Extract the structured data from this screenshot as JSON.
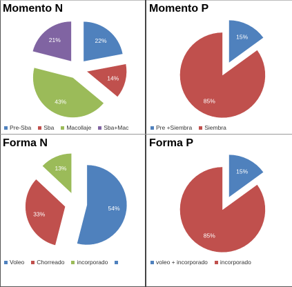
{
  "chart_data": [
    {
      "type": "pie",
      "title": "Momento N",
      "slices": [
        {
          "name": "Pre-Sba",
          "value": 22,
          "label": "22%",
          "color": "#4f81bd"
        },
        {
          "name": "Sba",
          "value": 14,
          "label": "14%",
          "color": "#c0504d"
        },
        {
          "name": "Macollaje",
          "value": 43,
          "label": "43%",
          "color": "#9bbb59"
        },
        {
          "name": "Sba+Mac",
          "value": 21,
          "label": "21%",
          "color": "#8064a2"
        }
      ],
      "legend": [
        "Pre-Sba",
        "Sba",
        "Macollaje",
        "Sba+Mac"
      ],
      "exploded": true
    },
    {
      "type": "pie",
      "title": "Momento P",
      "slices": [
        {
          "name": "Pre +Siembra",
          "value": 15,
          "label": "15%",
          "color": "#4f81bd"
        },
        {
          "name": "Siembra",
          "value": 85,
          "label": "85%",
          "color": "#c0504d"
        }
      ],
      "legend": [
        "Pre +Siembra",
        "Siembra"
      ],
      "exploded": true
    },
    {
      "type": "pie",
      "title": "Forma N",
      "slices": [
        {
          "name": "Voleo",
          "value": 54,
          "label": "54%",
          "color": "#4f81bd"
        },
        {
          "name": "Chorreado",
          "value": 33,
          "label": "33%",
          "color": "#c0504d"
        },
        {
          "name": "incorporado",
          "value": 13,
          "label": "13%",
          "color": "#9bbb59"
        }
      ],
      "legend": [
        "Voleo",
        "Chorreado",
        "incorporado",
        ""
      ],
      "exploded": true
    },
    {
      "type": "pie",
      "title": "Forma P",
      "slices": [
        {
          "name": "voleo + incorporado",
          "value": 15,
          "label": "15%",
          "color": "#4f81bd"
        },
        {
          "name": "incorporado",
          "value": 85,
          "label": "85%",
          "color": "#c0504d"
        }
      ],
      "legend": [
        "voleo + incorporado",
        "incorporado"
      ],
      "exploded": true
    }
  ]
}
